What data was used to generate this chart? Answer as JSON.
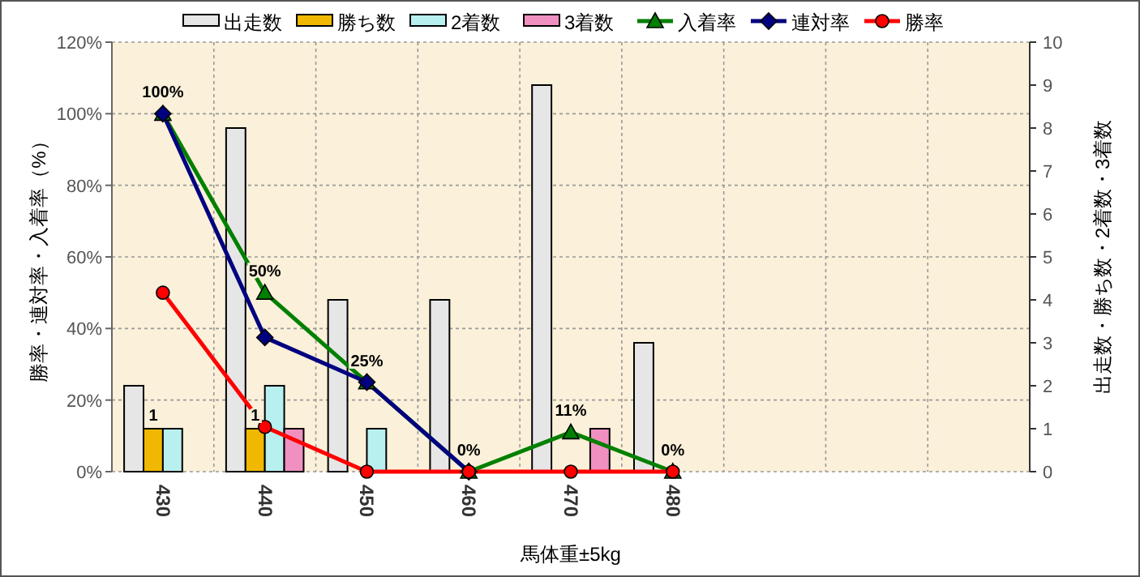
{
  "chart_data": {
    "type": "bar",
    "xlabel": "馬体重±5kg",
    "ylabel": "勝率・連対率・入着率（%）",
    "y2label": "出走数・勝ち数・2着数・3着数",
    "categories": [
      "430",
      "440",
      "450",
      "460",
      "470",
      "480",
      null,
      null,
      null
    ],
    "series": [
      {
        "name": "出走数",
        "axis": "y2",
        "color": "#e6e6e6",
        "values": [
          2,
          8,
          4,
          4,
          9,
          3,
          null,
          null,
          null
        ]
      },
      {
        "name": "勝ち数",
        "axis": "y2",
        "color": "#f0b800",
        "values": [
          1,
          1,
          0,
          0,
          0,
          0,
          null,
          null,
          null
        ],
        "value_labels": [
          "1",
          "1",
          null,
          null,
          null,
          null,
          null,
          null,
          null
        ]
      },
      {
        "name": "2着数",
        "axis": "y2",
        "color": "#b8f0f0",
        "values": [
          1,
          2,
          1,
          0,
          0,
          0,
          null,
          null,
          null
        ]
      },
      {
        "name": "3着数",
        "axis": "y2",
        "color": "#f090c0",
        "values": [
          0,
          1,
          0,
          0,
          1,
          0,
          null,
          null,
          null
        ]
      },
      {
        "name": "入着率",
        "type": "line",
        "color": "#008000",
        "marker": "triangle",
        "values": [
          100,
          50,
          25,
          0,
          11,
          0,
          null,
          null,
          null
        ],
        "value_labels": [
          "100%",
          "50%",
          "25%",
          "0%",
          "11%",
          "0%",
          null,
          null,
          null
        ]
      },
      {
        "name": "連対率",
        "type": "line",
        "color": "#000080",
        "marker": "diamond",
        "values": [
          100,
          37.5,
          25,
          0,
          null,
          null,
          null,
          null,
          null
        ]
      },
      {
        "name": "勝率",
        "type": "line",
        "color": "#ff0000",
        "marker": "circle",
        "values": [
          50,
          12.5,
          0,
          0,
          0,
          0,
          null,
          null,
          null
        ]
      }
    ],
    "ylim": [
      0,
      120
    ],
    "yticks": [
      {
        "value": 0,
        "label": "0%"
      },
      {
        "value": 20,
        "label": "20%"
      },
      {
        "value": 40,
        "label": "40%"
      },
      {
        "value": 60,
        "label": "60%"
      },
      {
        "value": 80,
        "label": "80%"
      },
      {
        "value": 100,
        "label": "100%"
      },
      {
        "value": 120,
        "label": "120%"
      }
    ],
    "y2lim": [
      0,
      10
    ],
    "y2ticks": [
      0,
      1,
      2,
      3,
      4,
      5,
      6,
      7,
      8,
      9,
      10
    ],
    "grid": true,
    "legend": "top"
  }
}
